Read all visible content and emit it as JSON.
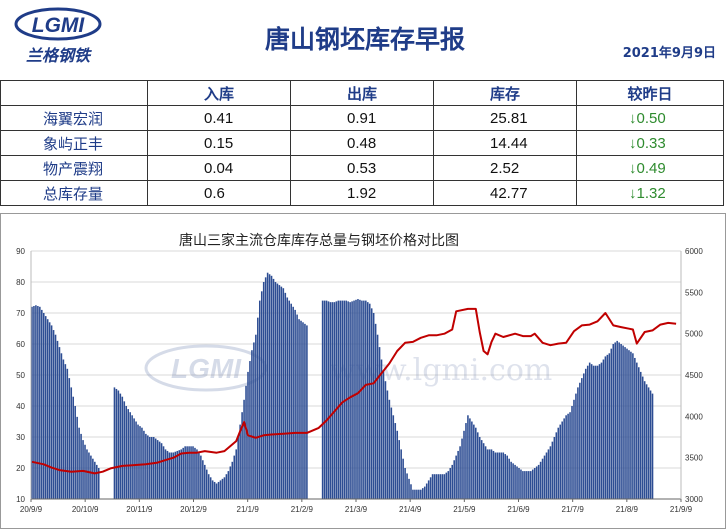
{
  "header": {
    "logo_text": "LGMI",
    "logo_subtext": "兰格钢铁",
    "title": "唐山钢坯库存早报",
    "date": "2021年9月9日"
  },
  "table": {
    "columns": [
      "",
      "入库",
      "出库",
      "库存",
      "较昨日"
    ],
    "rows": [
      {
        "name": "海翼宏润",
        "in": "0.41",
        "out": "0.91",
        "stock": "25.81",
        "change": "↓0.50"
      },
      {
        "name": "象屿正丰",
        "in": "0.15",
        "out": "0.48",
        "stock": "14.44",
        "change": "↓0.33"
      },
      {
        "name": "物产震翔",
        "in": "0.04",
        "out": "0.53",
        "stock": "2.52",
        "change": "↓0.49"
      },
      {
        "name": "总库存量",
        "in": "0.6",
        "out": "1.92",
        "stock": "42.77",
        "change": "↓1.32"
      }
    ],
    "change_color": "#2e8b2e"
  },
  "chart_data": {
    "type": "bar",
    "title": "唐山三家主流仓库库存总量与钢坯价格对比图",
    "watermark": "www.lgmi.com",
    "x_ticks": [
      "20/9/9",
      "20/10/9",
      "20/11/9",
      "20/12/9",
      "21/1/9",
      "21/2/9",
      "21/3/9",
      "21/4/9",
      "21/5/9",
      "21/6/9",
      "21/7/9",
      "21/8/9",
      "21/9/9"
    ],
    "y_left": {
      "min": 10,
      "max": 90,
      "step": 10
    },
    "y_right": {
      "min": 3000,
      "max": 6000,
      "step": 500
    },
    "bar_color": "#2d4d93",
    "line_color": "#c00000",
    "bars": {
      "name": "库存",
      "points": [
        [
          0,
          72
        ],
        [
          2,
          72.5
        ],
        [
          4,
          72
        ],
        [
          6,
          70
        ],
        [
          8,
          68
        ],
        [
          10,
          66
        ],
        [
          12,
          63
        ],
        [
          14,
          59
        ],
        [
          16,
          55
        ],
        [
          18,
          52
        ],
        [
          20,
          46
        ],
        [
          22,
          40
        ],
        [
          24,
          33
        ],
        [
          26,
          29
        ],
        [
          28,
          26
        ],
        [
          30,
          24
        ],
        [
          32,
          22
        ],
        [
          34,
          20
        ],
        [
          42,
          46
        ],
        [
          44,
          45
        ],
        [
          46,
          43
        ],
        [
          48,
          40
        ],
        [
          50,
          38
        ],
        [
          52,
          36
        ],
        [
          54,
          34
        ],
        [
          56,
          33
        ],
        [
          58,
          31
        ],
        [
          60,
          30
        ],
        [
          62,
          30
        ],
        [
          64,
          29
        ],
        [
          66,
          28
        ],
        [
          68,
          26
        ],
        [
          70,
          25
        ],
        [
          72,
          25
        ],
        [
          76,
          26
        ],
        [
          78,
          27
        ],
        [
          80,
          27
        ],
        [
          82,
          27
        ],
        [
          84,
          26
        ],
        [
          86,
          24
        ],
        [
          88,
          21
        ],
        [
          90,
          18
        ],
        [
          92,
          16
        ],
        [
          94,
          15
        ],
        [
          96,
          16
        ],
        [
          98,
          17
        ],
        [
          100,
          19
        ],
        [
          102,
          22
        ],
        [
          104,
          26
        ],
        [
          106,
          34
        ],
        [
          108,
          42
        ],
        [
          110,
          51
        ],
        [
          112,
          58
        ],
        [
          114,
          63
        ],
        [
          116,
          74
        ],
        [
          118,
          80
        ],
        [
          120,
          83
        ],
        [
          122,
          82
        ],
        [
          124,
          80
        ],
        [
          126,
          79
        ],
        [
          128,
          78
        ],
        [
          130,
          75
        ],
        [
          132,
          73
        ],
        [
          134,
          71
        ],
        [
          136,
          68
        ],
        [
          138,
          67
        ],
        [
          140,
          66
        ],
        [
          148,
          74
        ],
        [
          150,
          74
        ],
        [
          152,
          73.5
        ],
        [
          154,
          73.5
        ],
        [
          156,
          74
        ],
        [
          158,
          74
        ],
        [
          160,
          74
        ],
        [
          162,
          73.5
        ],
        [
          164,
          74
        ],
        [
          166,
          74.5
        ],
        [
          168,
          74
        ],
        [
          170,
          74
        ],
        [
          172,
          73
        ],
        [
          174,
          70
        ],
        [
          176,
          63
        ],
        [
          178,
          55
        ],
        [
          180,
          48
        ],
        [
          182,
          42
        ],
        [
          184,
          37
        ],
        [
          186,
          32
        ],
        [
          188,
          26
        ],
        [
          190,
          20
        ],
        [
          194,
          13
        ],
        [
          196,
          13
        ],
        [
          198,
          13
        ],
        [
          200,
          14
        ],
        [
          202,
          16
        ],
        [
          204,
          18
        ],
        [
          206,
          18
        ],
        [
          208,
          18
        ],
        [
          210,
          18
        ],
        [
          212,
          19
        ],
        [
          214,
          21
        ],
        [
          216,
          24
        ],
        [
          218,
          27
        ],
        [
          222,
          37
        ],
        [
          224,
          35
        ],
        [
          226,
          33
        ],
        [
          228,
          30
        ],
        [
          230,
          28
        ],
        [
          232,
          26
        ],
        [
          234,
          26
        ],
        [
          236,
          25
        ],
        [
          238,
          25
        ],
        [
          240,
          25
        ],
        [
          242,
          24
        ],
        [
          244,
          22
        ],
        [
          246,
          21
        ],
        [
          248,
          20
        ],
        [
          250,
          19
        ],
        [
          252,
          19
        ],
        [
          254,
          19
        ],
        [
          256,
          20
        ],
        [
          258,
          21
        ],
        [
          260,
          23
        ],
        [
          262,
          25
        ],
        [
          264,
          27
        ],
        [
          266,
          30
        ],
        [
          268,
          33
        ],
        [
          270,
          35
        ],
        [
          272,
          37
        ],
        [
          274,
          38
        ],
        [
          276,
          42
        ],
        [
          278,
          46
        ],
        [
          282,
          52
        ],
        [
          284,
          54
        ],
        [
          286,
          53
        ],
        [
          288,
          53
        ],
        [
          290,
          54
        ],
        [
          292,
          56
        ],
        [
          294,
          57
        ],
        [
          296,
          60
        ],
        [
          298,
          61
        ],
        [
          300,
          60
        ],
        [
          302,
          59
        ],
        [
          304,
          58
        ],
        [
          306,
          57
        ],
        [
          308,
          54
        ],
        [
          310,
          51
        ],
        [
          312,
          48
        ],
        [
          314,
          46
        ],
        [
          316,
          44
        ]
      ]
    },
    "line": {
      "name": "钢坯价格",
      "points": [
        [
          0,
          3450
        ],
        [
          6,
          3420
        ],
        [
          10,
          3380
        ],
        [
          14,
          3350
        ],
        [
          20,
          3330
        ],
        [
          26,
          3340
        ],
        [
          32,
          3310
        ],
        [
          36,
          3330
        ],
        [
          40,
          3370
        ],
        [
          46,
          3400
        ],
        [
          52,
          3410
        ],
        [
          58,
          3420
        ],
        [
          64,
          3440
        ],
        [
          68,
          3470
        ],
        [
          72,
          3500
        ],
        [
          76,
          3550
        ],
        [
          80,
          3560
        ],
        [
          84,
          3560
        ],
        [
          88,
          3580
        ],
        [
          94,
          3560
        ],
        [
          98,
          3580
        ],
        [
          100,
          3620
        ],
        [
          104,
          3700
        ],
        [
          106,
          3820
        ],
        [
          108,
          3930
        ],
        [
          110,
          3770
        ],
        [
          114,
          3740
        ],
        [
          118,
          3770
        ],
        [
          122,
          3780
        ],
        [
          128,
          3790
        ],
        [
          134,
          3800
        ],
        [
          140,
          3800
        ],
        [
          146,
          3860
        ],
        [
          150,
          3950
        ],
        [
          154,
          4060
        ],
        [
          158,
          4170
        ],
        [
          162,
          4230
        ],
        [
          166,
          4280
        ],
        [
          170,
          4380
        ],
        [
          174,
          4400
        ],
        [
          178,
          4520
        ],
        [
          182,
          4640
        ],
        [
          186,
          4790
        ],
        [
          190,
          4890
        ],
        [
          194,
          4900
        ],
        [
          198,
          4950
        ],
        [
          202,
          4980
        ],
        [
          206,
          4980
        ],
        [
          210,
          5000
        ],
        [
          214,
          5050
        ],
        [
          216,
          5270
        ],
        [
          222,
          5300
        ],
        [
          226,
          5300
        ],
        [
          228,
          5020
        ],
        [
          230,
          4790
        ],
        [
          232,
          4750
        ],
        [
          234,
          4900
        ],
        [
          236,
          5000
        ],
        [
          240,
          4960
        ],
        [
          246,
          5000
        ],
        [
          250,
          4970
        ],
        [
          254,
          4970
        ],
        [
          256,
          5000
        ],
        [
          260,
          4890
        ],
        [
          264,
          4860
        ],
        [
          268,
          4880
        ],
        [
          272,
          4890
        ],
        [
          276,
          5030
        ],
        [
          280,
          5100
        ],
        [
          284,
          5110
        ],
        [
          288,
          5150
        ],
        [
          292,
          5250
        ],
        [
          296,
          5100
        ],
        [
          300,
          5080
        ],
        [
          304,
          5060
        ],
        [
          306,
          5050
        ],
        [
          308,
          4880
        ],
        [
          312,
          5020
        ],
        [
          316,
          5040
        ],
        [
          320,
          5110
        ],
        [
          324,
          5130
        ],
        [
          328,
          5120
        ]
      ]
    }
  }
}
